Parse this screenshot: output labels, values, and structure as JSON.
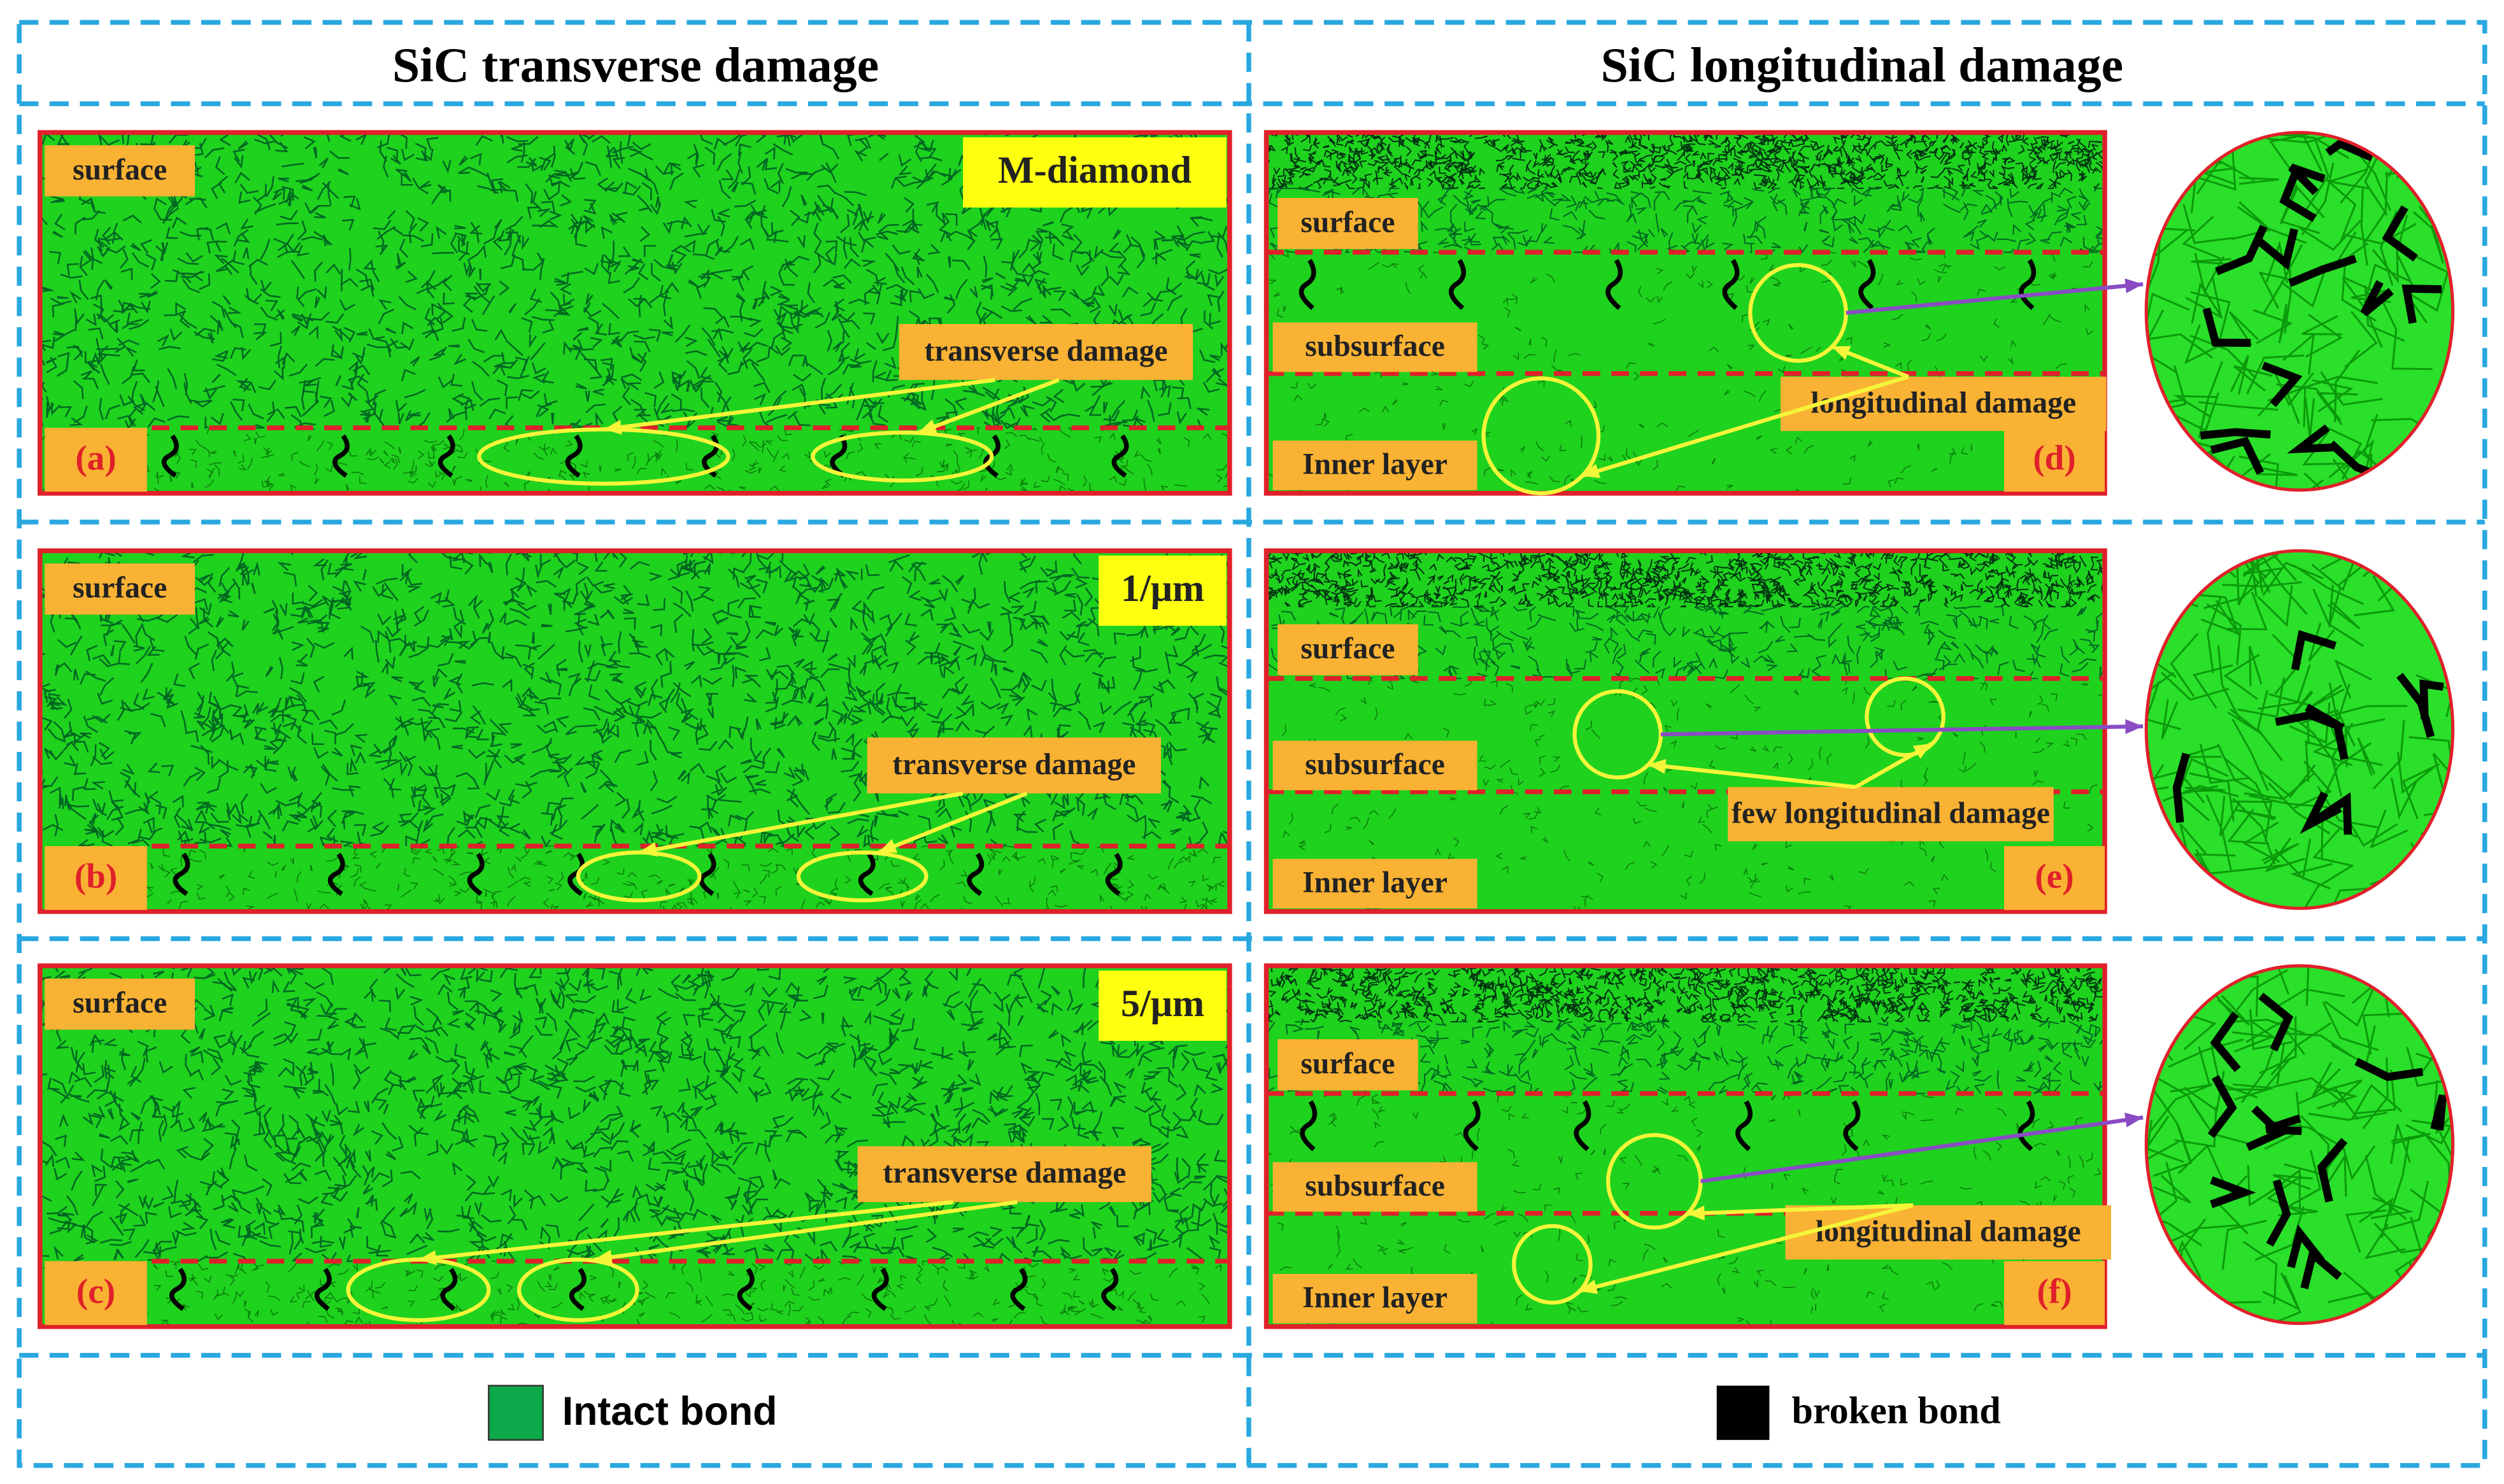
{
  "columns": [
    {
      "title": "SiC transverse damage"
    },
    {
      "title": "SiC longitudinal damage"
    }
  ],
  "panels": [
    {
      "letter": "(a)",
      "tag": "M-diamond",
      "layers": [
        "surface"
      ],
      "annotation": "transverse damage"
    },
    {
      "letter": "(b)",
      "tag": "1/μm",
      "layers": [
        "surface"
      ],
      "annotation": "transverse damage"
    },
    {
      "letter": "(c)",
      "tag": "5/μm",
      "layers": [
        "surface"
      ],
      "annotation": "transverse damage"
    },
    {
      "letter": "(d)",
      "layers": [
        "surface",
        "subsurface",
        "Inner layer"
      ],
      "annotation": "longitudinal damage"
    },
    {
      "letter": "(e)",
      "layers": [
        "surface",
        "subsurface",
        "Inner layer"
      ],
      "annotation": "few longitudinal damage"
    },
    {
      "letter": "(f)",
      "layers": [
        "surface",
        "subsurface",
        "Inner layer"
      ],
      "annotation": "longitudinal damage"
    }
  ],
  "legend": [
    {
      "label": "Intact bond"
    },
    {
      "label": "broken bond"
    }
  ]
}
